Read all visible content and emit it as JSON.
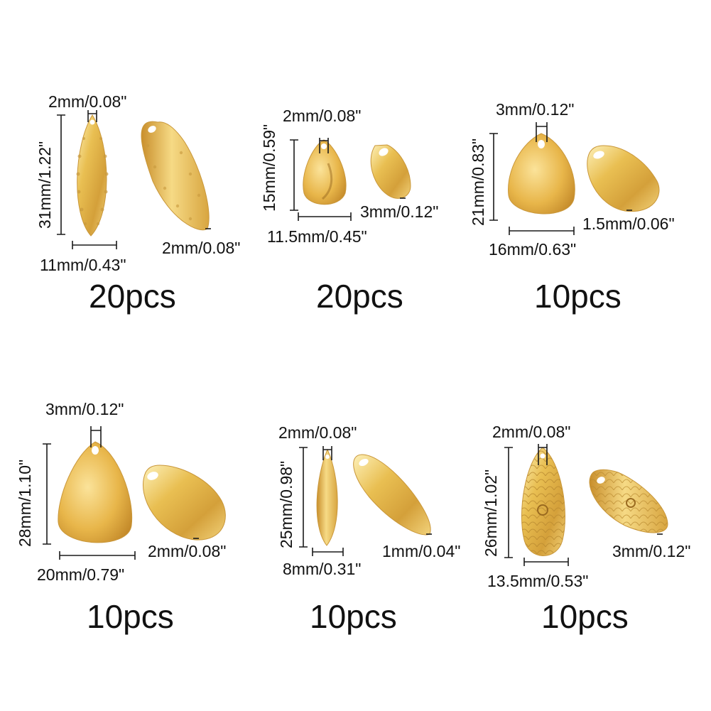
{
  "colors": {
    "gold_light": "#fbe9a0",
    "gold_mid": "#e6b94a",
    "gold_dark": "#b9812a",
    "dimension_line": "#1a1a1a",
    "background": "#ffffff"
  },
  "items": [
    {
      "shape": "willow-hammered",
      "hole": "2mm/0.08\"",
      "length": "31mm/1.22\"",
      "width": "11mm/0.43\"",
      "thickness": "2mm/0.08\"",
      "count": "20pcs"
    },
    {
      "shape": "teardrop-small",
      "hole": "2mm/0.08\"",
      "length": "15mm/0.59\"",
      "width": "11.5mm/0.45\"",
      "thickness": "3mm/0.12\"",
      "count": "20pcs"
    },
    {
      "shape": "teardrop-medium",
      "hole": "3mm/0.12\"",
      "length": "21mm/0.83\"",
      "width": "16mm/0.63\"",
      "thickness": "1.5mm/0.06\"",
      "count": "10pcs"
    },
    {
      "shape": "teardrop-large",
      "hole": "3mm/0.12\"",
      "length": "28mm/1.10\"",
      "width": "20mm/0.79\"",
      "thickness": "2mm/0.08\"",
      "count": "10pcs"
    },
    {
      "shape": "willow-smooth",
      "hole": "2mm/0.08\"",
      "length": "25mm/0.98\"",
      "width": "8mm/0.31\"",
      "thickness": "1mm/0.04\"",
      "count": "10pcs"
    },
    {
      "shape": "willow-scaled",
      "hole": "2mm/0.08\"",
      "length": "26mm/1.02\"",
      "width": "13.5mm/0.53\"",
      "thickness": "3mm/0.12\"",
      "count": "10pcs"
    }
  ]
}
